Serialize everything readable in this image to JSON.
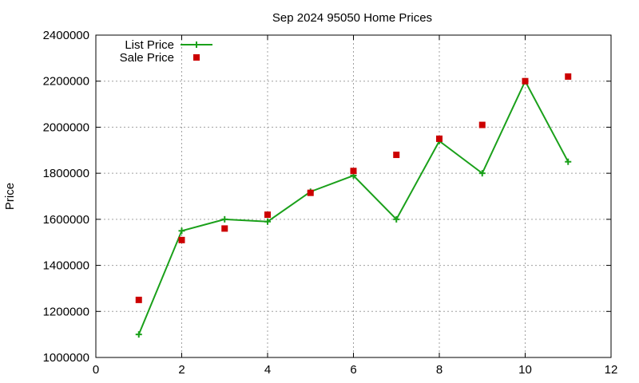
{
  "chart_data": {
    "type": "line",
    "title": "Sep 2024 95050 Home Prices",
    "xlabel": "",
    "ylabel": "Price",
    "xlim": [
      0,
      12
    ],
    "ylim": [
      1000000,
      2400000
    ],
    "x_ticks": [
      0,
      2,
      4,
      6,
      8,
      10,
      12
    ],
    "y_ticks": [
      1000000,
      1200000,
      1400000,
      1600000,
      1800000,
      2000000,
      2200000,
      2400000
    ],
    "grid": true,
    "legend_position": "top-left",
    "series": [
      {
        "name": "List Price",
        "style": "line-with-plus-markers",
        "color": "#1aa01a",
        "x": [
          1,
          2,
          3,
          4,
          5,
          6,
          7,
          8,
          9,
          10,
          11
        ],
        "y": [
          1100000,
          1550000,
          1600000,
          1590000,
          1720000,
          1790000,
          1600000,
          1940000,
          1800000,
          2200000,
          1850000
        ]
      },
      {
        "name": "Sale Price",
        "style": "square-markers",
        "color": "#cc0000",
        "x": [
          1,
          2,
          3,
          4,
          5,
          6,
          7,
          8,
          9,
          10,
          11
        ],
        "y": [
          1250000,
          1510000,
          1560000,
          1620000,
          1715000,
          1810000,
          1880000,
          1950000,
          2010000,
          2200000,
          2220000
        ]
      }
    ]
  }
}
